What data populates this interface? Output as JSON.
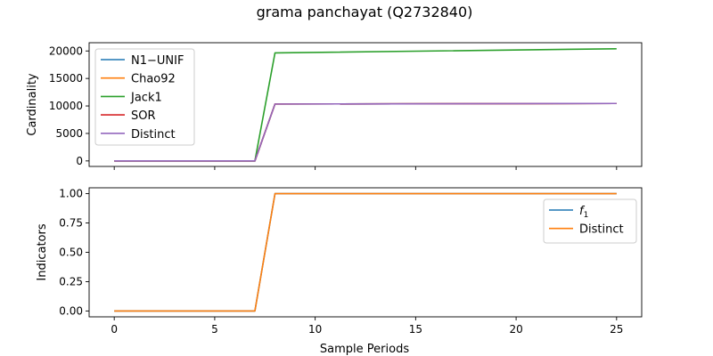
{
  "figure": {
    "title": "grama panchayat (Q2732840)",
    "xlabel": "Sample Periods"
  },
  "chart_data": [
    {
      "type": "line",
      "ylabel": "Cardinality",
      "xlim": [
        -1.25,
        26.25
      ],
      "ylim": [
        -1000,
        21500
      ],
      "xticks": [
        0,
        5,
        10,
        15,
        20,
        25
      ],
      "yticks": [
        0,
        5000,
        10000,
        15000,
        20000
      ],
      "ytick_labels": [
        "0",
        "5000",
        "10000",
        "15000",
        "20000"
      ],
      "legend_position": "upper-left",
      "x": [
        0,
        1,
        2,
        3,
        4,
        5,
        6,
        7,
        8,
        25
      ],
      "series": [
        {
          "name": "N1−UNIF",
          "color": "#1f77b4",
          "values": [
            0,
            0,
            0,
            0,
            0,
            0,
            0,
            0,
            10350,
            10450
          ]
        },
        {
          "name": "Chao92",
          "color": "#ff7f0e",
          "values": [
            0,
            0,
            0,
            0,
            0,
            0,
            0,
            0,
            10350,
            10450
          ]
        },
        {
          "name": "Jack1",
          "color": "#2ca02c",
          "values": [
            0,
            0,
            0,
            0,
            0,
            0,
            0,
            0,
            19650,
            20400
          ]
        },
        {
          "name": "SOR",
          "color": "#d62728",
          "values": [
            0,
            0,
            0,
            0,
            0,
            0,
            0,
            0,
            10350,
            10450
          ]
        },
        {
          "name": "Distinct",
          "color": "#9467bd",
          "values": [
            0,
            0,
            0,
            0,
            0,
            0,
            0,
            0,
            10350,
            10450
          ]
        }
      ]
    },
    {
      "type": "line",
      "ylabel": "Indicators",
      "xlim": [
        -1.25,
        26.25
      ],
      "ylim": [
        -0.05,
        1.05
      ],
      "xticks": [
        0,
        5,
        10,
        15,
        20,
        25
      ],
      "xtick_labels": [
        "0",
        "5",
        "10",
        "15",
        "20",
        "25"
      ],
      "yticks": [
        0,
        0.25,
        0.5,
        0.75,
        1.0
      ],
      "ytick_labels": [
        "0.00",
        "0.25",
        "0.50",
        "0.75",
        "1.00"
      ],
      "legend_position": "upper-right",
      "x": [
        0,
        1,
        2,
        3,
        4,
        5,
        6,
        7,
        8,
        25
      ],
      "series": [
        {
          "name": "f",
          "name_subscript": "1",
          "color": "#1f77b4",
          "values": [
            0,
            0,
            0,
            0,
            0,
            0,
            0,
            0,
            1,
            1
          ]
        },
        {
          "name": "Distinct",
          "color": "#ff7f0e",
          "values": [
            0,
            0,
            0,
            0,
            0,
            0,
            0,
            0,
            1,
            1
          ]
        }
      ]
    }
  ]
}
